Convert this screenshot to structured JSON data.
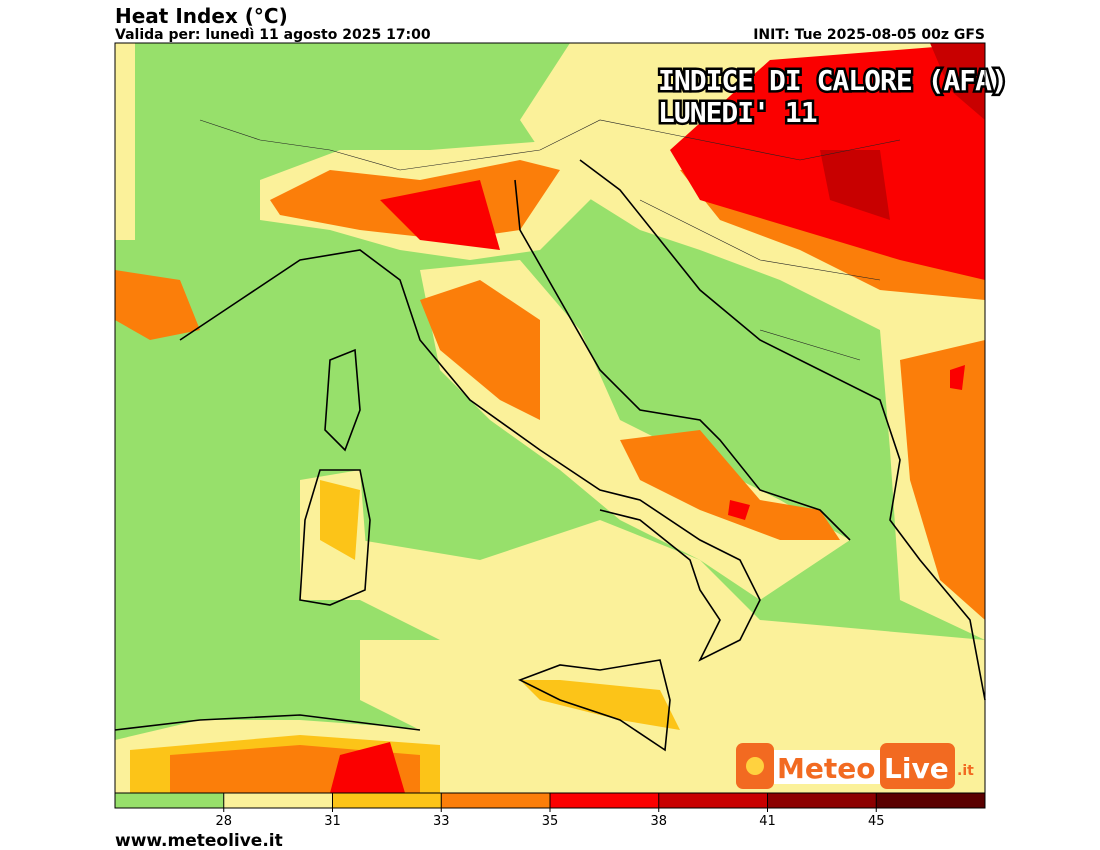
{
  "header": {
    "title": "Heat Index (°C)",
    "valid": "Valida per: lunedì 11 agosto 2025 17:00",
    "init": "INIT: Tue 2025-08-05 00z GFS"
  },
  "overlay": {
    "line1": "INDICE DI CALORE (AFA)",
    "line2": "LUNEDI' 11"
  },
  "logo": {
    "meteo": "Meteo",
    "live": "Live",
    "tld": ".it"
  },
  "legend": {
    "colors": [
      "#97e06b",
      "#fbf19a",
      "#fcc418",
      "#fb7e0a",
      "#fb0000",
      "#c80000",
      "#8c0000",
      "#5a0000"
    ],
    "ticks": [
      28,
      31,
      33,
      35,
      38,
      41,
      45
    ]
  },
  "footer": {
    "url": "www.meteolive.it"
  }
}
